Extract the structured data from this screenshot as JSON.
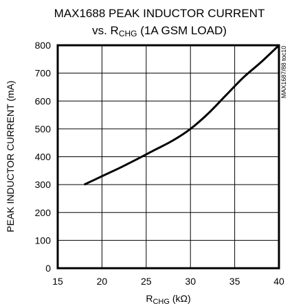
{
  "chart_data": {
    "type": "line",
    "title_line1": "MAX1688 PEAK INDUCTOR CURRENT",
    "title_line2_prefix": "vs. R",
    "title_line2_sub": "CHG",
    "title_line2_suffix": " (1A GSM LOAD)",
    "xlabel_main": "R",
    "xlabel_sub": "CHG",
    "xlabel_unit": " (kΩ)",
    "ylabel": "PEAK INDUCTOR CURRENT (mA)",
    "side_note": "MAX1687/88 toc10",
    "xlim": [
      15,
      40
    ],
    "ylim": [
      0,
      800
    ],
    "x_ticks": [
      "15",
      "20",
      "25",
      "30",
      "35",
      "40"
    ],
    "y_ticks": [
      "0",
      "100",
      "200",
      "300",
      "400",
      "500",
      "600",
      "700",
      "800"
    ],
    "grid": true,
    "series": [
      {
        "x": [
          18,
          20,
          22,
          24,
          26,
          28,
          30,
          32,
          34,
          36,
          38,
          40
        ],
        "y": [
          300,
          330,
          360,
          392,
          425,
          458,
          500,
          555,
          620,
          685,
          740,
          800
        ]
      }
    ]
  }
}
